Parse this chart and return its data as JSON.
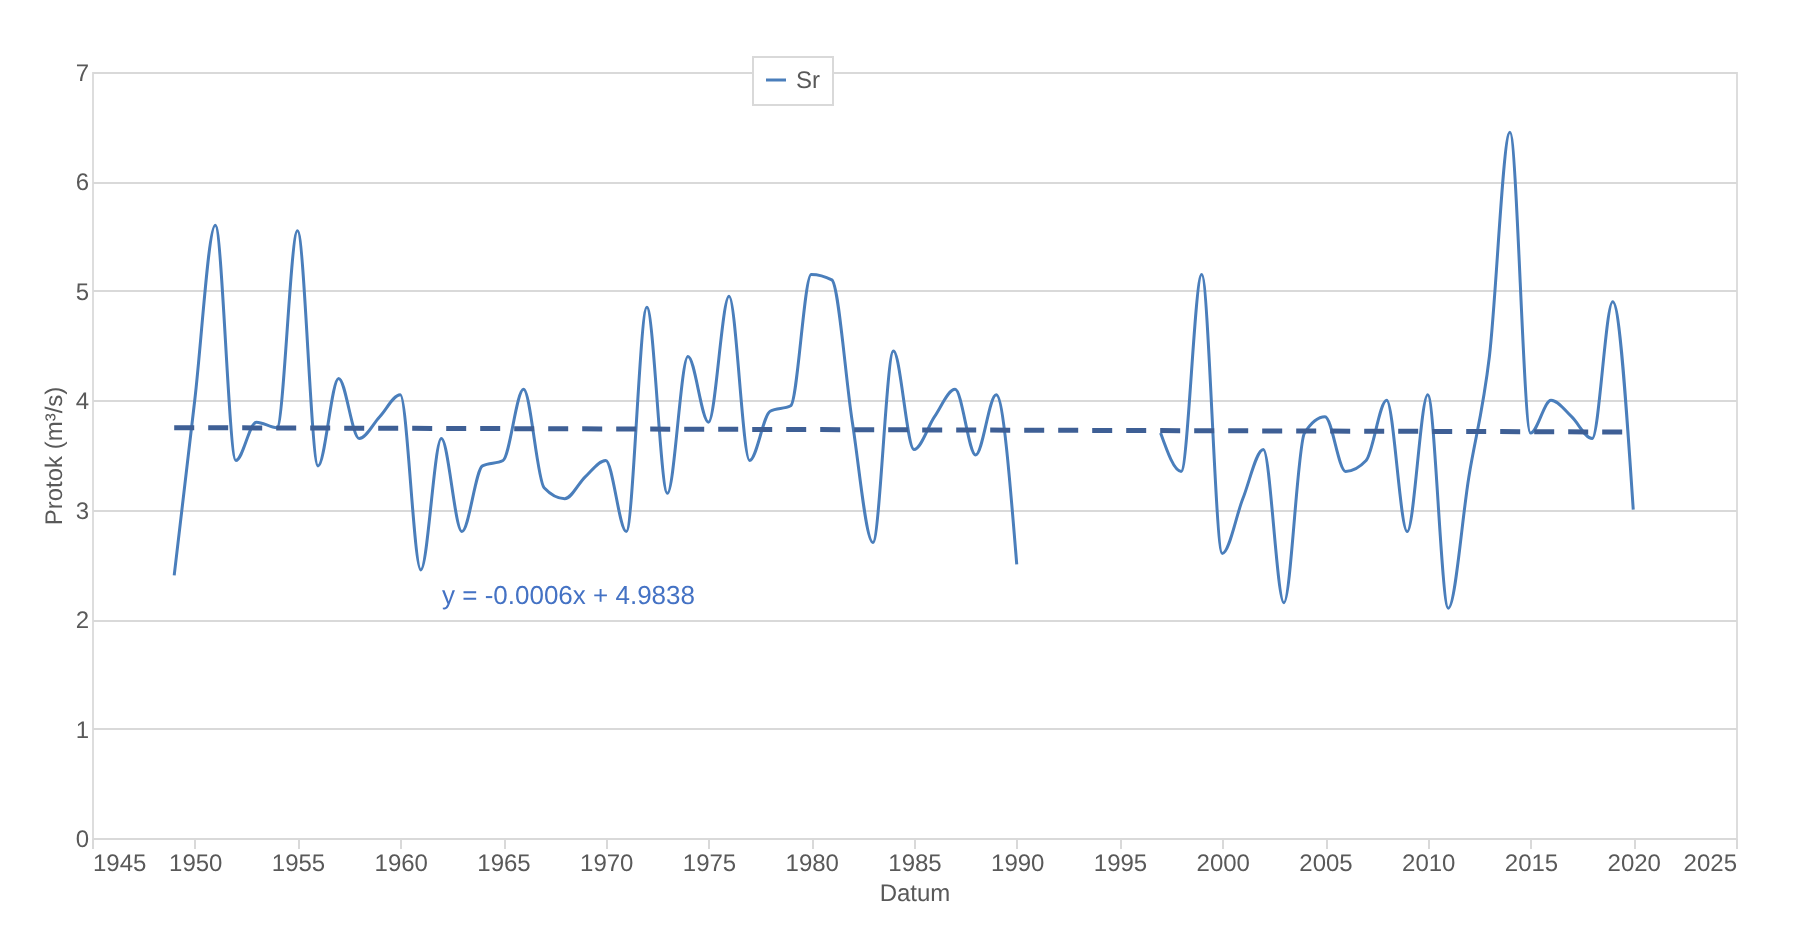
{
  "chart_data": {
    "type": "line",
    "xlabel": "Datum",
    "ylabel": "Protok (m³/s)",
    "xlim": [
      1945,
      2025
    ],
    "xticks": [
      1945,
      1950,
      1955,
      1960,
      1965,
      1970,
      1975,
      1980,
      1985,
      1990,
      1995,
      2000,
      2005,
      2010,
      2015,
      2020,
      2025
    ],
    "ylim": [
      0,
      7
    ],
    "yticks": [
      0,
      1,
      2,
      3,
      4,
      5,
      6,
      7
    ],
    "grid": "y",
    "legend": "top",
    "marker": "none",
    "annotations": [
      "y = -0.0006x + 4.9838"
    ],
    "series": [
      {
        "name": "Sr",
        "color": "#4a7ebb",
        "line_style": "solid",
        "x": [
          1949,
          1950,
          1951,
          1952,
          1953,
          1954,
          1955,
          1956,
          1957,
          1958,
          1959,
          1960,
          1961,
          1962,
          1963,
          1964,
          1965,
          1966,
          1967,
          1968,
          1969,
          1970,
          1971,
          1972,
          1973,
          1974,
          1975,
          1976,
          1977,
          1978,
          1979,
          1980,
          1981,
          1982,
          1983,
          1984,
          1985,
          1986,
          1987,
          1988,
          1989,
          1990,
          1991,
          1992,
          1993,
          1994,
          1995,
          1996,
          1997,
          1998,
          1999,
          2000,
          2001,
          2002,
          2003,
          2004,
          2005,
          2006,
          2007,
          2008,
          2009,
          2010,
          2011,
          2012,
          2013,
          2014,
          2015,
          2016,
          2017,
          2018,
          2019,
          2020
        ],
        "values": [
          2.4,
          4.0,
          5.6,
          3.45,
          3.8,
          3.75,
          5.55,
          3.4,
          4.2,
          3.65,
          3.85,
          4.05,
          2.45,
          3.65,
          2.8,
          3.4,
          3.45,
          4.1,
          3.2,
          3.1,
          3.3,
          3.45,
          2.8,
          4.85,
          3.15,
          4.4,
          3.8,
          4.95,
          3.45,
          3.9,
          3.95,
          5.15,
          5.1,
          3.8,
          2.7,
          4.45,
          3.55,
          3.85,
          4.1,
          3.5,
          4.05,
          2.5,
          null,
          null,
          null,
          null,
          null,
          null,
          3.7,
          3.35,
          5.15,
          2.6,
          3.1,
          3.55,
          2.15,
          3.7,
          3.85,
          3.35,
          3.45,
          4.0,
          2.8,
          4.05,
          2.1,
          3.3,
          4.4,
          6.45,
          3.7,
          4.0,
          3.85,
          3.65,
          4.9,
          3.0
        ]
      },
      {
        "type": "line",
        "color": "#3e5f95",
        "line_style": "dashed",
        "x": [
          1949,
          2020
        ],
        "values": [
          3.75,
          3.71
        ]
      }
    ]
  }
}
